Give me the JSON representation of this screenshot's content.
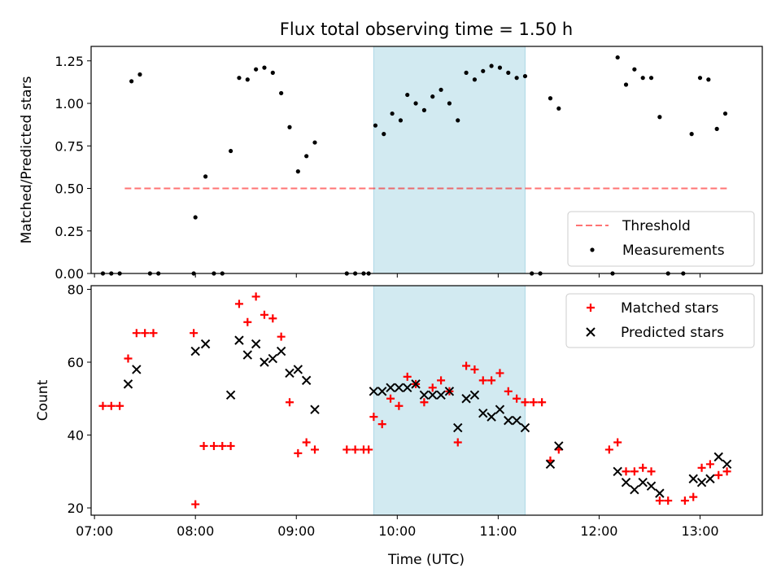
{
  "chart_data": [
    {
      "type": "scatter",
      "title": "Flux total observing time = 1.50 h",
      "ylabel": "Matched/Predicted stars",
      "xlabel": "",
      "xlim": [
        "06:58",
        "13:37"
      ],
      "ylim": [
        0,
        1.335
      ],
      "x_ticks": [
        "07:00",
        "08:00",
        "09:00",
        "10:00",
        "11:00",
        "12:00",
        "13:00"
      ],
      "y_ticks": [
        "0.00",
        "0.25",
        "0.50",
        "0.75",
        "1.00",
        "1.25"
      ],
      "highlight_span": {
        "start": "09:46",
        "end": "11:16",
        "color": "#add8e6"
      },
      "threshold": {
        "name": "Threshold",
        "value": 0.5,
        "x_start": "07:18",
        "x_end": "13:17",
        "color": "#ff0000",
        "style": "dashed"
      },
      "legend": {
        "position": "lower-right",
        "entries": [
          "Threshold",
          "Measurements"
        ]
      },
      "series": [
        {
          "name": "Measurements",
          "color": "#000000",
          "marker": "dot",
          "points": [
            [
              "07:05",
              0
            ],
            [
              "07:10",
              0
            ],
            [
              "07:15",
              0
            ],
            [
              "07:22",
              1.13
            ],
            [
              "07:27",
              1.17
            ],
            [
              "07:33",
              0
            ],
            [
              "07:38",
              0
            ],
            [
              "07:59",
              0
            ],
            [
              "08:00",
              0.33
            ],
            [
              "08:06",
              0.57
            ],
            [
              "08:11",
              0
            ],
            [
              "08:16",
              0
            ],
            [
              "08:21",
              0.72
            ],
            [
              "08:26",
              1.15
            ],
            [
              "08:31",
              1.14
            ],
            [
              "08:36",
              1.2
            ],
            [
              "08:41",
              1.21
            ],
            [
              "08:46",
              1.18
            ],
            [
              "08:51",
              1.06
            ],
            [
              "08:56",
              0.86
            ],
            [
              "09:01",
              0.6
            ],
            [
              "09:06",
              0.69
            ],
            [
              "09:11",
              0.77
            ],
            [
              "09:30",
              0
            ],
            [
              "09:35",
              0
            ],
            [
              "09:40",
              0
            ],
            [
              "09:43",
              0
            ],
            [
              "09:47",
              0.87
            ],
            [
              "09:52",
              0.82
            ],
            [
              "09:57",
              0.94
            ],
            [
              "10:02",
              0.9
            ],
            [
              "10:06",
              1.05
            ],
            [
              "10:11",
              1
            ],
            [
              "10:16",
              0.96
            ],
            [
              "10:21",
              1.04
            ],
            [
              "10:26",
              1.08
            ],
            [
              "10:31",
              1
            ],
            [
              "10:36",
              0.9
            ],
            [
              "10:41",
              1.18
            ],
            [
              "10:46",
              1.14
            ],
            [
              "10:51",
              1.19
            ],
            [
              "10:56",
              1.22
            ],
            [
              "11:01",
              1.21
            ],
            [
              "11:06",
              1.18
            ],
            [
              "11:11",
              1.15
            ],
            [
              "11:16",
              1.16
            ],
            [
              "11:20",
              0
            ],
            [
              "11:25",
              0
            ],
            [
              "11:31",
              1.03
            ],
            [
              "11:36",
              0.97
            ],
            [
              "12:08",
              0
            ],
            [
              "12:11",
              1.27
            ],
            [
              "12:16",
              1.11
            ],
            [
              "12:21",
              1.2
            ],
            [
              "12:26",
              1.15
            ],
            [
              "12:31",
              1.15
            ],
            [
              "12:36",
              0.92
            ],
            [
              "12:41",
              0
            ],
            [
              "12:50",
              0
            ],
            [
              "12:55",
              0.82
            ],
            [
              "13:00",
              1.15
            ],
            [
              "13:05",
              1.14
            ],
            [
              "13:10",
              0.85
            ],
            [
              "13:15",
              0.94
            ]
          ]
        }
      ]
    },
    {
      "type": "scatter",
      "title": "",
      "ylabel": "Count",
      "xlabel": "Time (UTC)",
      "xlim": [
        "06:58",
        "13:37"
      ],
      "ylim": [
        18,
        81
      ],
      "x_ticks": [
        "07:00",
        "08:00",
        "09:00",
        "10:00",
        "11:00",
        "12:00",
        "13:00"
      ],
      "y_ticks": [
        "20",
        "40",
        "60",
        "80"
      ],
      "highlight_span": {
        "start": "09:46",
        "end": "11:16",
        "color": "#add8e6"
      },
      "legend": {
        "position": "top-right",
        "entries": [
          "Matched stars",
          "Predicted stars"
        ]
      },
      "series": [
        {
          "name": "Matched stars",
          "color": "#ff0000",
          "marker": "plus",
          "points": [
            [
              "07:05",
              48
            ],
            [
              "07:10",
              48
            ],
            [
              "07:15",
              48
            ],
            [
              "07:20",
              61
            ],
            [
              "07:25",
              68
            ],
            [
              "07:30",
              68
            ],
            [
              "07:35",
              68
            ],
            [
              "07:59",
              68
            ],
            [
              "08:00",
              21
            ],
            [
              "08:05",
              37
            ],
            [
              "08:11",
              37
            ],
            [
              "08:16",
              37
            ],
            [
              "08:21",
              37
            ],
            [
              "08:26",
              76
            ],
            [
              "08:31",
              71
            ],
            [
              "08:36",
              78
            ],
            [
              "08:41",
              73
            ],
            [
              "08:46",
              72
            ],
            [
              "08:51",
              67
            ],
            [
              "08:56",
              49
            ],
            [
              "09:01",
              35
            ],
            [
              "09:06",
              38
            ],
            [
              "09:11",
              36
            ],
            [
              "09:30",
              36
            ],
            [
              "09:35",
              36
            ],
            [
              "09:40",
              36
            ],
            [
              "09:43",
              36
            ],
            [
              "09:46",
              45
            ],
            [
              "09:51",
              43
            ],
            [
              "09:56",
              50
            ],
            [
              "10:01",
              48
            ],
            [
              "10:06",
              56
            ],
            [
              "10:11",
              54
            ],
            [
              "10:16",
              49
            ],
            [
              "10:21",
              53
            ],
            [
              "10:26",
              55
            ],
            [
              "10:31",
              52
            ],
            [
              "10:36",
              38
            ],
            [
              "10:41",
              59
            ],
            [
              "10:46",
              58
            ],
            [
              "10:51",
              55
            ],
            [
              "10:56",
              55
            ],
            [
              "11:01",
              57
            ],
            [
              "11:06",
              52
            ],
            [
              "11:11",
              50
            ],
            [
              "11:16",
              49
            ],
            [
              "11:21",
              49
            ],
            [
              "11:26",
              49
            ],
            [
              "11:31",
              33
            ],
            [
              "11:36",
              36
            ],
            [
              "12:06",
              36
            ],
            [
              "12:11",
              38
            ],
            [
              "12:16",
              30
            ],
            [
              "12:21",
              30
            ],
            [
              "12:26",
              31
            ],
            [
              "12:31",
              30
            ],
            [
              "12:36",
              22
            ],
            [
              "12:41",
              22
            ],
            [
              "12:51",
              22
            ],
            [
              "12:56",
              23
            ],
            [
              "13:01",
              31
            ],
            [
              "13:06",
              32
            ],
            [
              "13:11",
              29
            ],
            [
              "13:16",
              30
            ]
          ]
        },
        {
          "name": "Predicted stars",
          "color": "#000000",
          "marker": "x",
          "points": [
            [
              "07:20",
              54
            ],
            [
              "07:25",
              58
            ],
            [
              "08:00",
              63
            ],
            [
              "08:06",
              65
            ],
            [
              "08:21",
              51
            ],
            [
              "08:26",
              66
            ],
            [
              "08:31",
              62
            ],
            [
              "08:36",
              65
            ],
            [
              "08:41",
              60
            ],
            [
              "08:46",
              61
            ],
            [
              "08:51",
              63
            ],
            [
              "08:56",
              57
            ],
            [
              "09:01",
              58
            ],
            [
              "09:06",
              55
            ],
            [
              "09:11",
              47
            ],
            [
              "09:46",
              52
            ],
            [
              "09:51",
              52
            ],
            [
              "09:56",
              53
            ],
            [
              "10:01",
              53
            ],
            [
              "10:06",
              53
            ],
            [
              "10:11",
              54
            ],
            [
              "10:16",
              51
            ],
            [
              "10:21",
              51
            ],
            [
              "10:26",
              51
            ],
            [
              "10:31",
              52
            ],
            [
              "10:36",
              42
            ],
            [
              "10:41",
              50
            ],
            [
              "10:46",
              51
            ],
            [
              "10:51",
              46
            ],
            [
              "10:56",
              45
            ],
            [
              "11:01",
              47
            ],
            [
              "11:06",
              44
            ],
            [
              "11:11",
              44
            ],
            [
              "11:16",
              42
            ],
            [
              "11:31",
              32
            ],
            [
              "11:36",
              37
            ],
            [
              "12:11",
              30
            ],
            [
              "12:16",
              27
            ],
            [
              "12:21",
              25
            ],
            [
              "12:26",
              27
            ],
            [
              "12:31",
              26
            ],
            [
              "12:36",
              24
            ],
            [
              "12:56",
              28
            ],
            [
              "13:01",
              27
            ],
            [
              "13:06",
              28
            ],
            [
              "13:11",
              34
            ],
            [
              "13:16",
              32
            ]
          ]
        }
      ]
    }
  ]
}
